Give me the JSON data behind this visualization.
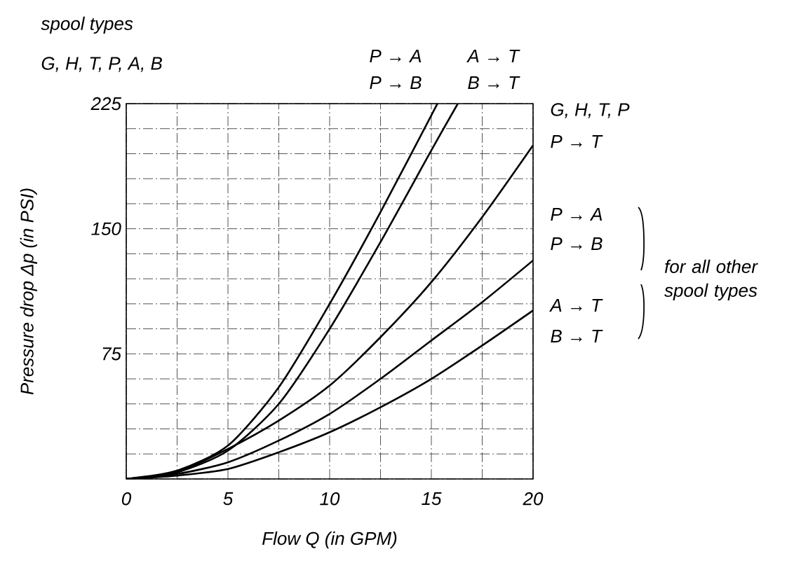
{
  "chart_data": {
    "type": "line",
    "xlabel": "Flow Q (in GPM)",
    "ylabel": "Pressure drop Δp (in PSI)",
    "xlim": [
      0,
      20
    ],
    "ylim": [
      0,
      225
    ],
    "xticks": [
      0,
      {
        "value": 2.5,
        "label": null
      },
      5,
      {
        "value": 7.5,
        "label": null
      },
      10,
      {
        "value": 12.5,
        "label": null
      },
      15,
      {
        "value": 17.5,
        "label": null
      },
      20
    ],
    "yticks": [
      {
        "value": 0,
        "label": null
      },
      {
        "value": 15,
        "label": null
      },
      {
        "value": 30,
        "label": null
      },
      {
        "value": 45,
        "label": null
      },
      {
        "value": 60,
        "label": null
      },
      75,
      {
        "value": 90,
        "label": null
      },
      {
        "value": 105,
        "label": null
      },
      {
        "value": 120,
        "label": null
      },
      {
        "value": 135,
        "label": null
      },
      150,
      {
        "value": 165,
        "label": null
      },
      {
        "value": 180,
        "label": null
      },
      {
        "value": 195,
        "label": null
      },
      {
        "value": 210,
        "label": null
      },
      225
    ],
    "grid": true,
    "marker": "none",
    "line_style": "solid",
    "series": [
      {
        "color": "#000000",
        "x": [
          0,
          2.5,
          5,
          7.5,
          10,
          12.5,
          15.3
        ],
        "values": [
          0,
          5,
          20,
          55,
          105,
          160,
          225
        ]
      },
      {
        "color": "#000000",
        "x": [
          0,
          2.5,
          5,
          7.5,
          10,
          12.5,
          15,
          16.3
        ],
        "values": [
          0,
          4,
          17,
          45,
          90,
          142,
          197,
          225
        ]
      },
      {
        "color": "#000000",
        "x": [
          0,
          2.5,
          5,
          7.5,
          10,
          12.5,
          15,
          17.5,
          20
        ],
        "values": [
          0,
          4,
          18,
          35,
          56,
          85,
          118,
          157,
          200
        ]
      },
      {
        "color": "#000000",
        "x": [
          0,
          2.5,
          5,
          7.5,
          10,
          12.5,
          15,
          17.5,
          20
        ],
        "values": [
          0,
          3,
          10,
          23,
          39,
          60,
          83,
          106,
          131
        ]
      },
      {
        "color": "#000000",
        "x": [
          0,
          2.5,
          5,
          7.5,
          10,
          12.5,
          15,
          17.5,
          20
        ],
        "values": [
          0,
          2,
          6,
          16,
          28,
          43,
          60,
          80,
          101
        ]
      }
    ],
    "annotations": [
      "spool types",
      "G, H, T, P, A, B",
      "P → A",
      "P → B",
      "A → T",
      "B → T",
      "G, H, T, P",
      "P → T",
      "P → A",
      "P → B",
      "A → T",
      "B → T",
      "for all other spool types"
    ]
  }
}
